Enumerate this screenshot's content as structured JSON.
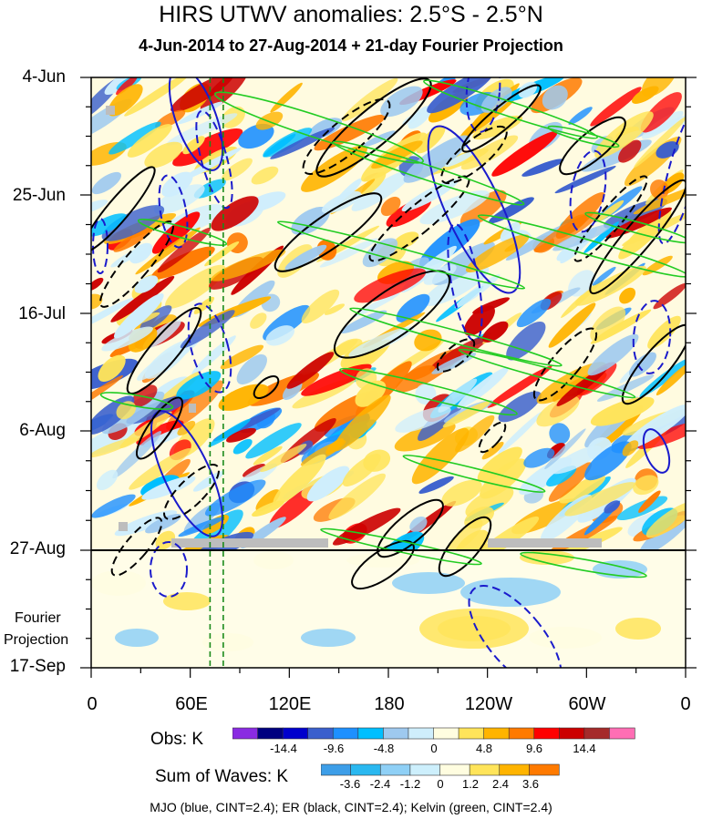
{
  "chart_data": {
    "type": "heatmap",
    "title": "HIRS UTWV anomalies: 2.5°S - 2.5°N",
    "subtitle": "4-Jun-2014 to 27-Aug-2014 + 21-day Fourier Projection",
    "y_axis": {
      "labels": [
        "4-Jun",
        "25-Jun",
        "16-Jul",
        "6-Aug",
        "27-Aug",
        "17-Sep"
      ],
      "projection_label_line1": "Fourier",
      "projection_label_line2": "Projection"
    },
    "x_axis": {
      "labels": [
        "0",
        "60E",
        "120E",
        "180",
        "120W",
        "60W",
        "0"
      ],
      "range_deg_east": [
        0,
        360
      ]
    },
    "obs_colorbar": {
      "label": "Obs: K",
      "tick_labels": [
        "-14.4",
        "-9.6",
        "-4.8",
        "0",
        "4.8",
        "9.6",
        "14.4"
      ],
      "colors": [
        "#8a2be2",
        "#000080",
        "#0000cd",
        "#3a5fcd",
        "#1e90ff",
        "#00bfff",
        "#9ec9ef",
        "#cfeefc",
        "#fffde0",
        "#ffe45a",
        "#ffb400",
        "#ff7a00",
        "#ff0000",
        "#cc0000",
        "#a52a2a",
        "#ff6eb4"
      ]
    },
    "waves_colorbar": {
      "label": "Sum of Waves: K",
      "tick_labels": [
        "-3.6",
        "-2.4",
        "-1.2",
        "0",
        "1.2",
        "2.4",
        "3.6"
      ],
      "colors": [
        "#3d9ee8",
        "#2ab8f0",
        "#8fd0f6",
        "#cdeffc",
        "#fffde0",
        "#ffe45a",
        "#ffb400",
        "#ff7a00"
      ]
    },
    "reference_lines_deg_east": [
      72,
      80
    ],
    "footer": "MJO (blue, CINT=2.4); ER (black, CINT=2.4); Kelvin (green, CINT=2.4)"
  }
}
